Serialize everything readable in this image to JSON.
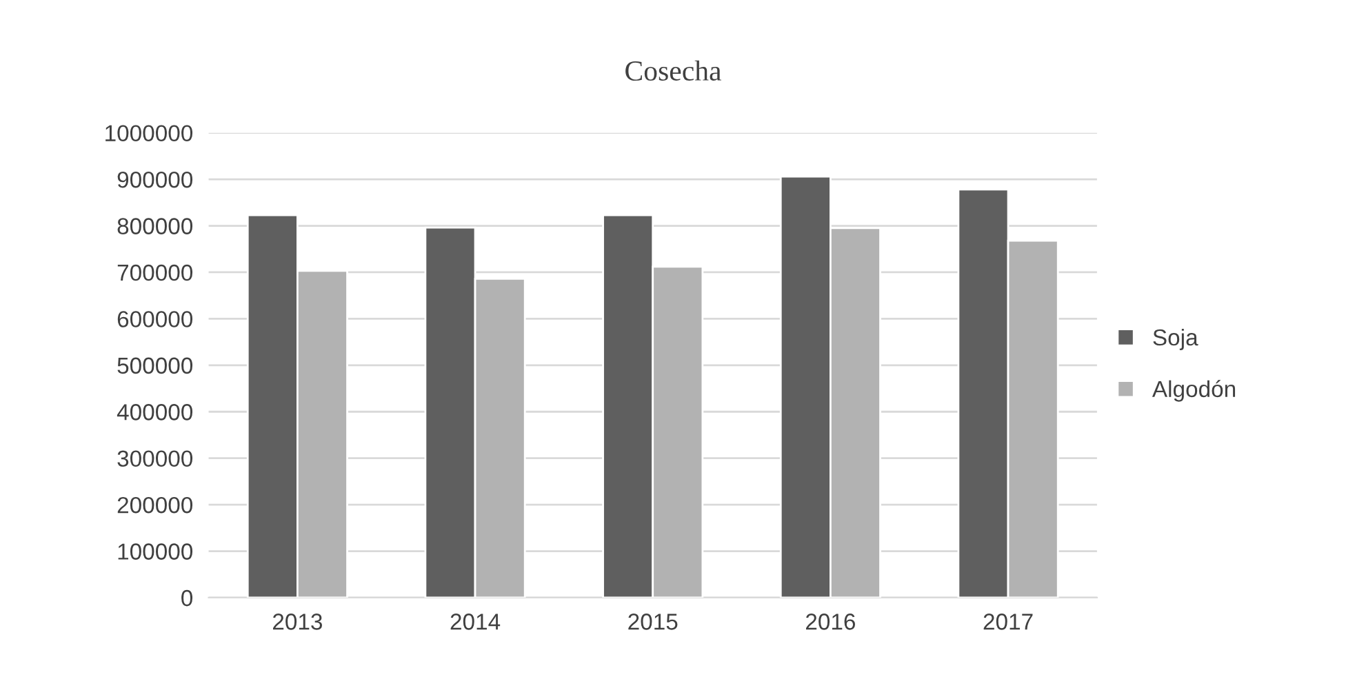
{
  "chart_data": {
    "type": "bar",
    "title": "Cosecha",
    "categories": [
      "2013",
      "2014",
      "2015",
      "2016",
      "2017"
    ],
    "series": [
      {
        "name": "Soja",
        "color": "#5f5f5f",
        "values": [
          823000,
          796000,
          823000,
          906000,
          878000
        ]
      },
      {
        "name": "Algodón",
        "color": "#b2b2b2",
        "values": [
          703000,
          686000,
          712000,
          795000,
          768000
        ]
      }
    ],
    "ylim": [
      0,
      1000000
    ],
    "yticks": [
      0,
      100000,
      200000,
      300000,
      400000,
      500000,
      600000,
      700000,
      800000,
      900000,
      1000000
    ],
    "grid": "y",
    "legend": "right"
  }
}
